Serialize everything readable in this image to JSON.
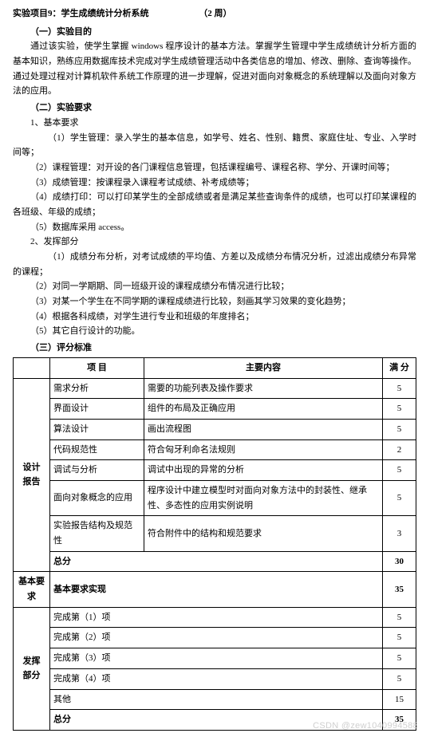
{
  "title": {
    "main": "实验项目9：学生成绩统计分析系统",
    "weeks": "（2 周）"
  },
  "sec1": {
    "heading": "（一）实验目的",
    "p1": "通过该实验，使学生掌握 windows 程序设计的基本方法。掌握学生管理中学生成绩统计分析方面的基本知识，熟练应用数据库技术完成对学生成绩管理活动中各类信息的增加、修改、删除、查询等操作。通过处理过程对计算机软件系统工作原理的进一步理解，促进对面向对象概念的系统理解以及面向对象方法的应用。"
  },
  "sec2": {
    "heading": "（二）实验要求",
    "basic_h": "1、基本要求",
    "basic": {
      "i1": "（1）学生管理：录入学生的基本信息，如学号、姓名、性别、籍贯、家庭住址、专业、入学时间等；",
      "i2": "（2）课程管理：对开设的各门课程信息管理，包括课程编号、课程名称、学分、开课时间等；",
      "i3": "（3）成绩管理：按课程录入课程考试成绩、补考成绩等；",
      "i4": "（4）成绩打印：可以打印某学生的全部成绩或者是满足某些查询条件的成绩，也可以打印某课程的各班级、年级的成绩；",
      "i5": "（5）数据库采用 access。"
    },
    "ext_h": "2、发挥部分",
    "ext": {
      "i1": "（1）成绩分布分析，对考试成绩的平均值、方差以及成绩分布情况分析，过滤出成绩分布异常的课程；",
      "i2": "（2）对同一学期期、同一班级开设的课程成绩分布情况进行比较；",
      "i3": "（3）对某一个学生在不同学期的课程成绩进行比较，刻画其学习效果的变化趋势；",
      "i4": "（4）根据各科成绩，对学生进行专业和班级的年度排名；",
      "i5": "（5）其它自行设计的功能。"
    }
  },
  "sec3": {
    "heading": "（三）评分标准",
    "headers": {
      "item": "项 目",
      "desc": "主要内容",
      "score": "满 分"
    },
    "cat1": "设计\n报告",
    "cat2": "基本要求",
    "cat3": "发挥\n部分",
    "rows": {
      "r1": {
        "item": "需求分析",
        "desc": "需要的功能列表及操作要求",
        "score": "5"
      },
      "r2": {
        "item": "界面设计",
        "desc": "组件的布局及正确应用",
        "score": "5"
      },
      "r3": {
        "item": "算法设计",
        "desc": "画出流程图",
        "score": "5"
      },
      "r4": {
        "item": "代码规范性",
        "desc": "符合匈牙利命名法规则",
        "score": "2"
      },
      "r5": {
        "item": "调试与分析",
        "desc": "调试中出现的异常的分析",
        "score": "5"
      },
      "r6": {
        "item": "面向对象概念的应用",
        "desc": "程序设计中建立模型时对面向对象方法中的封装性、继承性、多态性的应用实例说明",
        "score": "5"
      },
      "r7": {
        "item": "实验报告结构及规范性",
        "desc": "符合附件中的结构和规范要求",
        "score": "3"
      },
      "r8": {
        "item": "总分",
        "desc": "",
        "score": "30"
      },
      "r9": {
        "item": "基本要求实现",
        "desc": "",
        "score": "35"
      },
      "r10": {
        "item": "完成第（1）项",
        "desc": "",
        "score": "5"
      },
      "r11": {
        "item": "完成第（2）项",
        "desc": "",
        "score": "5"
      },
      "r12": {
        "item": "完成第（3）项",
        "desc": "",
        "score": "5"
      },
      "r13": {
        "item": "完成第（4）项",
        "desc": "",
        "score": "5"
      },
      "r14": {
        "item": "其他",
        "desc": "",
        "score": "15"
      },
      "r15": {
        "item": "总分",
        "desc": "",
        "score": "35"
      }
    }
  },
  "watermark": "CSDN @zew1040994588"
}
